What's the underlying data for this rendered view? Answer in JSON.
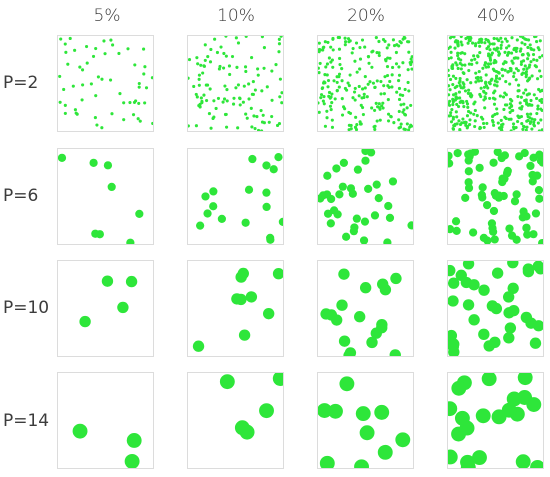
{
  "columns": [
    {
      "label": "5%",
      "fraction": 0.05
    },
    {
      "label": "10%",
      "fraction": 0.1
    },
    {
      "label": "20%",
      "fraction": 0.2
    },
    {
      "label": "40%",
      "fraction": 0.4
    }
  ],
  "rows": [
    {
      "label": "P=2",
      "p": 2
    },
    {
      "label": "P=6",
      "p": 6
    },
    {
      "label": "P=10",
      "p": 10
    },
    {
      "label": "P=14",
      "p": 14
    }
  ],
  "colors": {
    "dot": "#2ee63a",
    "tile_border": "#dcdcdc",
    "text": "#3c3c3c"
  }
}
